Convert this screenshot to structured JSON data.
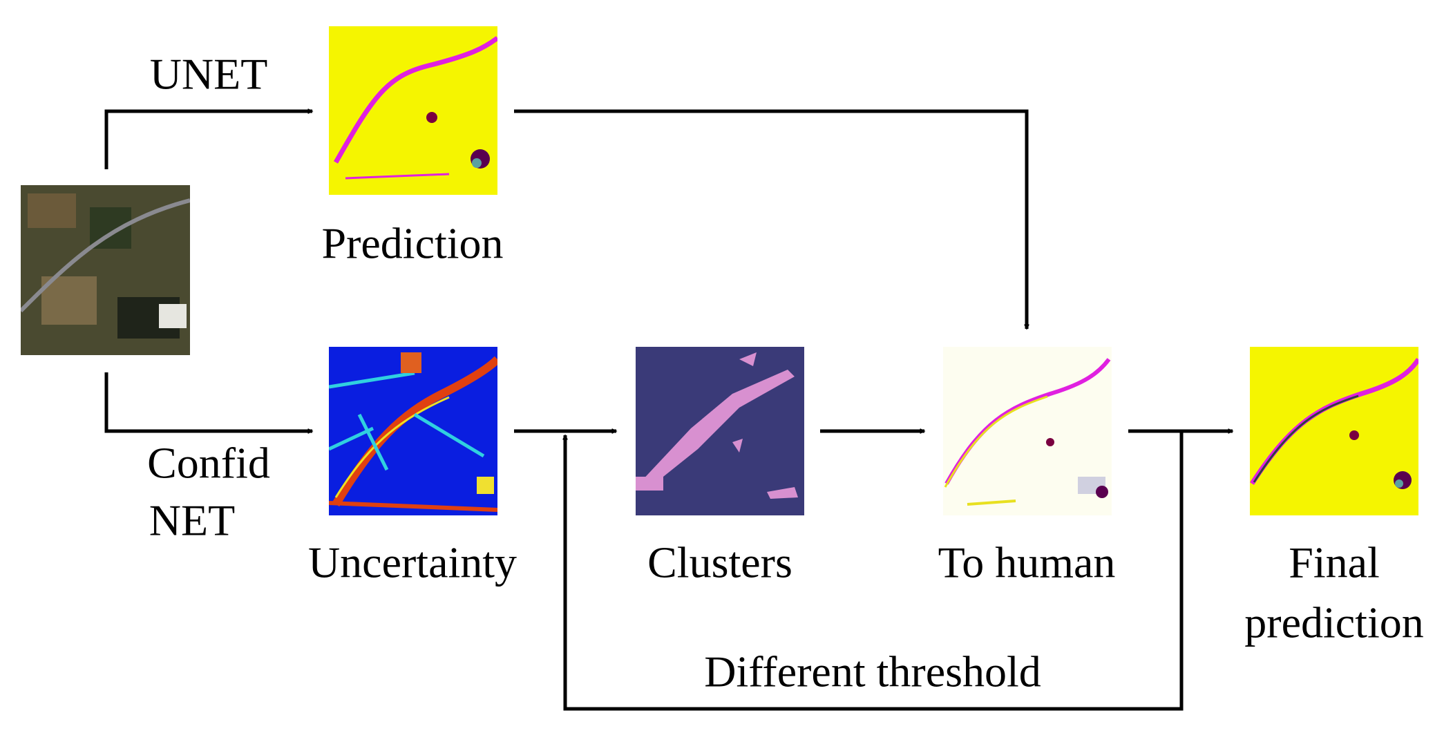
{
  "edges": {
    "unet": "UNET",
    "confidnet": [
      "Confid",
      "NET"
    ],
    "loop": "Different threshold"
  },
  "nodes": [
    {
      "label": [
        "Prediction"
      ]
    },
    {
      "label": [
        "Uncertainty"
      ]
    },
    {
      "label": [
        "Clusters"
      ]
    },
    {
      "label": [
        "To human"
      ]
    },
    {
      "label": [
        "Final",
        "prediction"
      ]
    }
  ]
}
